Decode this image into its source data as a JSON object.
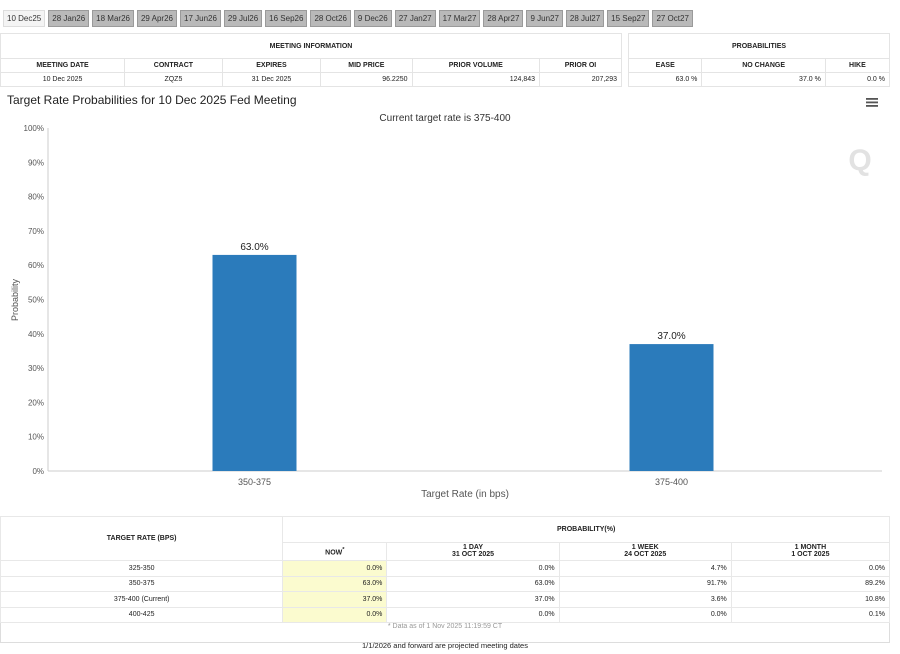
{
  "tabs": [
    "10 Dec25",
    "28 Jan26",
    "18 Mar26",
    "29 Apr26",
    "17 Jun26",
    "29 Jul26",
    "16 Sep26",
    "28 Oct26",
    "9 Dec26",
    "27 Jan27",
    "17 Mar27",
    "28 Apr27",
    "9 Jun27",
    "28 Jul27",
    "15 Sep27",
    "27 Oct27"
  ],
  "active_tab": 0,
  "meeting_info": {
    "title": "MEETING INFORMATION",
    "headers": [
      "MEETING DATE",
      "CONTRACT",
      "EXPIRES",
      "MID PRICE",
      "PRIOR VOLUME",
      "PRIOR OI"
    ],
    "values": [
      "10 Dec 2025",
      "ZQZ5",
      "31 Dec 2025",
      "96.2250",
      "124,843",
      "207,293"
    ]
  },
  "probabilities": {
    "title": "PROBABILITIES",
    "headers": [
      "EASE",
      "NO CHANGE",
      "HIKE"
    ],
    "values": [
      "63.0 %",
      "37.0 %",
      "0.0 %"
    ]
  },
  "chart_data": {
    "type": "bar",
    "title": "Target Rate Probabilities for 10 Dec 2025 Fed Meeting",
    "subtitle": "Current target rate is 375-400",
    "xlabel": "Target Rate (in bps)",
    "ylabel": "Probability",
    "categories": [
      "350-375",
      "375-400"
    ],
    "values": [
      63.0,
      37.0
    ],
    "data_labels": [
      "63.0%",
      "37.0%"
    ],
    "ylim": [
      0,
      100
    ],
    "yticks": [
      "0%",
      "10%",
      "20%",
      "30%",
      "40%",
      "50%",
      "60%",
      "70%",
      "80%",
      "90%",
      "100%"
    ],
    "grid": false,
    "color": "#2b7bbb"
  },
  "menu_icon": "hamburger-icon",
  "watermark": "Q",
  "table": {
    "col1": "TARGET RATE (BPS)",
    "prob": "PROBABILITY(%)",
    "cols": [
      {
        "l1": "NOW",
        "l2": "",
        "star": "*"
      },
      {
        "l1": "1 DAY",
        "l2": "31 OCT 2025"
      },
      {
        "l1": "1 WEEK",
        "l2": "24 OCT 2025"
      },
      {
        "l1": "1 MONTH",
        "l2": "1 OCT 2025"
      }
    ],
    "rows": [
      [
        "325-350",
        "0.0%",
        "0.0%",
        "4.7%",
        "0.0%"
      ],
      [
        "350-375",
        "63.0%",
        "63.0%",
        "91.7%",
        "89.2%"
      ],
      [
        "375-400 (Current)",
        "37.0%",
        "37.0%",
        "3.6%",
        "10.8%"
      ],
      [
        "400-425",
        "0.0%",
        "0.0%",
        "0.0%",
        "0.1%"
      ]
    ],
    "note": "* Data as of 1 Nov 2025 11:19:59 CT"
  },
  "footer": "1/1/2026 and forward are projected meeting dates"
}
